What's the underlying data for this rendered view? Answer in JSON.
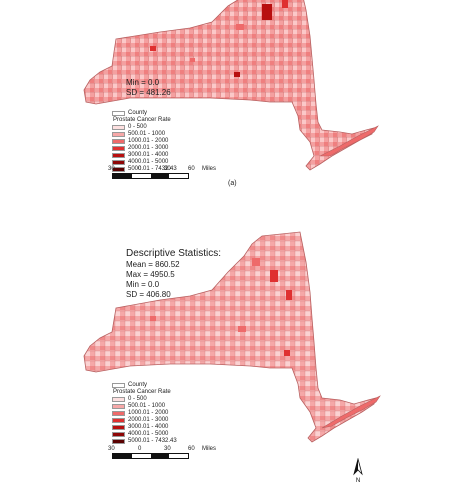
{
  "panels": [
    {
      "id": "a",
      "label": "(a)",
      "stats": {
        "title": "",
        "lines": [
          "Min = 0.0",
          "SD = 481.26"
        ]
      }
    },
    {
      "id": "b",
      "label": "",
      "stats": {
        "title": "Descriptive Statistics:",
        "lines": [
          "Mean = 860.52",
          "Max = 4950.5",
          "Min = 0.0",
          "SD = 406.80"
        ]
      }
    }
  ],
  "legend": {
    "county_label": "County",
    "title": "Prostate Cancer Rate",
    "classes": [
      {
        "label": "0 - 500",
        "color": "#fde0e0"
      },
      {
        "label": "500.01 - 1000",
        "color": "#f7a8a8"
      },
      {
        "label": "1000.01 - 2000",
        "color": "#ee6a6a"
      },
      {
        "label": "2000.01 - 3000",
        "color": "#df3030"
      },
      {
        "label": "3000.01 - 4000",
        "color": "#b80f0f"
      },
      {
        "label": "4000.01 - 5000",
        "color": "#8e0606"
      },
      {
        "label": "5000.01 - 7432.43",
        "color": "#5a0202"
      }
    ]
  },
  "scale": {
    "ticks": [
      "30",
      "0",
      "30",
      "60"
    ],
    "unit": "Miles"
  },
  "north_label": "N",
  "map_colors": {
    "border": "#b86060",
    "base": "#f4a0a0"
  }
}
